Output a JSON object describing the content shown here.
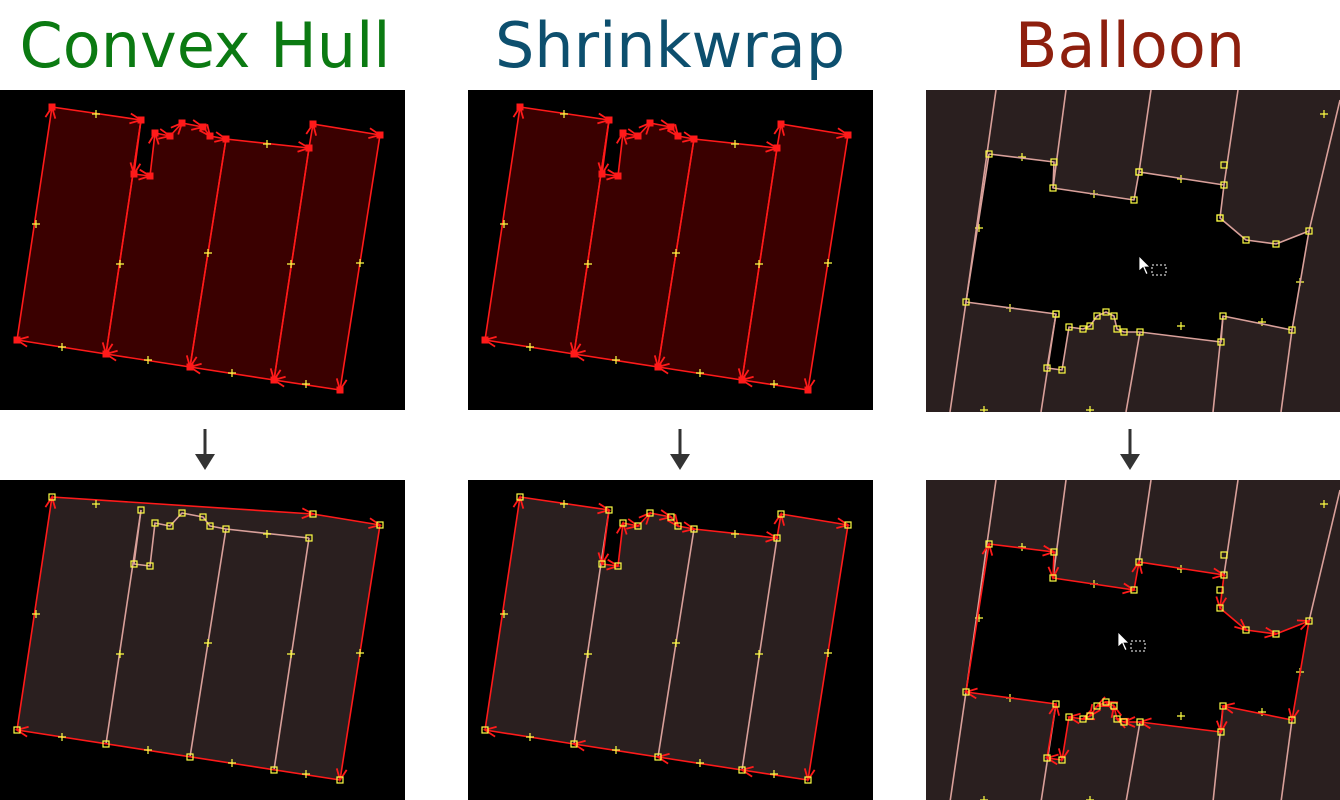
{
  "columns": [
    {
      "title": "Convex Hull",
      "color": "#0b7a12"
    },
    {
      "title": "Shrinkwrap",
      "color": "#0d4f6e"
    },
    {
      "title": "Balloon",
      "color": "#8e1f0e"
    }
  ],
  "colors": {
    "background": "#000000",
    "region_fill": "#2a1f1f",
    "selected_fill": "#3a0000",
    "selected_edge": "#ff1a1a",
    "plain_edge": "#d9a09a",
    "vertex": "#ffff44",
    "arrow_down": "#333333"
  },
  "icons": [
    "down-arrow-icon",
    "mouse-cursor-icon",
    "marquee-icon"
  ]
}
